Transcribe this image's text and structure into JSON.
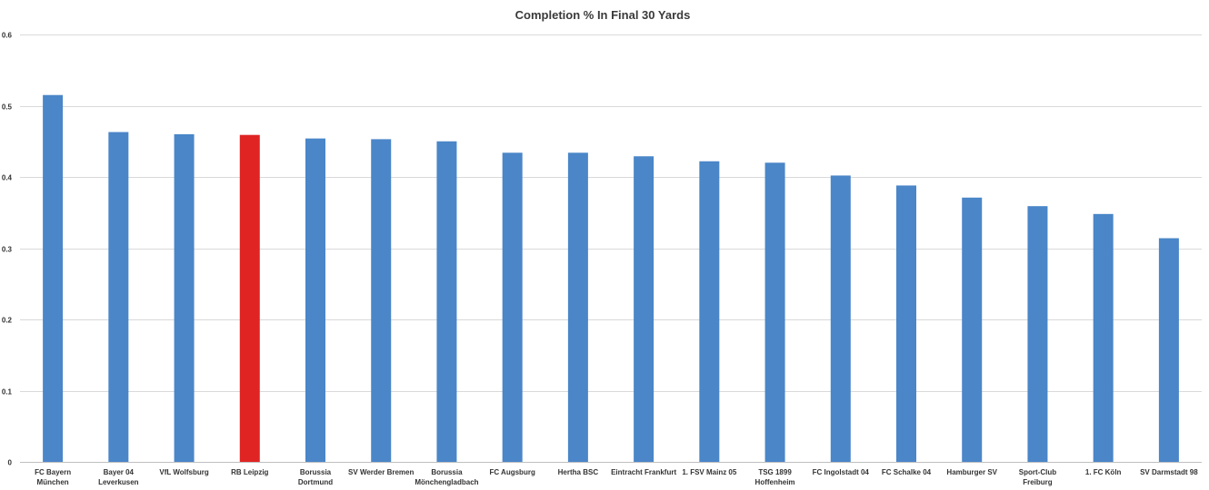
{
  "chart_data": {
    "type": "bar",
    "title": "Completion % In Final 30 Yards",
    "xlabel": "",
    "ylabel": "",
    "ylim": [
      0,
      0.6
    ],
    "yticks": [
      "0",
      "0.1",
      "0.2",
      "0.3",
      "0.4",
      "0.5",
      "0.6"
    ],
    "grid": true,
    "legend": "none",
    "categories": [
      "FC Bayern München",
      "Bayer 04 Leverkusen",
      "VfL Wolfsburg",
      "RB Leipzig",
      "Borussia Dortmund",
      "SV Werder Bremen",
      "Borussia Mönchengladbach",
      "FC Augsburg",
      "Hertha BSC",
      "Eintracht Frankfurt",
      "1. FSV Mainz 05",
      "TSG 1899 Hoffenheim",
      "FC Ingolstadt 04",
      "FC Schalke 04",
      "Hamburger SV",
      "Sport-Club Freiburg",
      "1. FC Köln",
      "SV Darmstadt 98"
    ],
    "category_label_lines": [
      [
        "FC Bayern",
        "München"
      ],
      [
        "Bayer 04",
        "Leverkusen"
      ],
      [
        "VfL Wolfsburg"
      ],
      [
        "RB Leipzig"
      ],
      [
        "Borussia",
        "Dortmund"
      ],
      [
        "SV Werder Bremen"
      ],
      [
        "Borussia",
        "Mönchengladbach"
      ],
      [
        "FC Augsburg"
      ],
      [
        "Hertha BSC"
      ],
      [
        "Eintracht Frankfurt"
      ],
      [
        "1. FSV Mainz 05"
      ],
      [
        "TSG 1899",
        "Hoffenheim"
      ],
      [
        "FC Ingolstadt 04"
      ],
      [
        "FC Schalke 04"
      ],
      [
        "Hamburger SV"
      ],
      [
        "Sport-Club",
        "Freiburg"
      ],
      [
        "1. FC Köln"
      ],
      [
        "SV Darmstadt 98"
      ]
    ],
    "values": [
      0.515,
      0.463,
      0.46,
      0.459,
      0.454,
      0.453,
      0.45,
      0.434,
      0.434,
      0.429,
      0.422,
      0.42,
      0.402,
      0.388,
      0.371,
      0.359,
      0.348,
      0.314
    ],
    "colors": {
      "default": "#4a86c8",
      "highlight": "#e02424"
    },
    "highlight_category": "RB Leipzig"
  }
}
